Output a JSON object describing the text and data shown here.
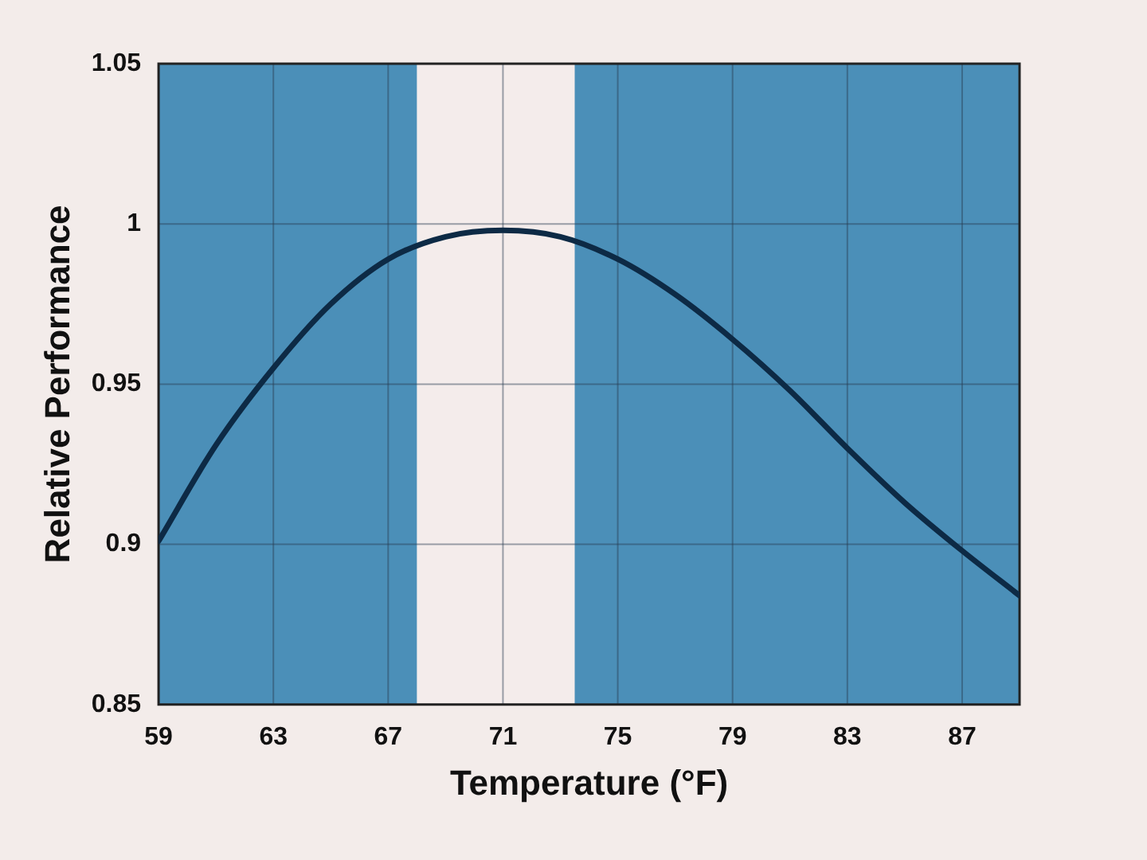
{
  "chart_data": {
    "type": "line",
    "xlabel": "Temperature (°F)",
    "ylabel": "Relative Performance",
    "x": [
      59,
      61,
      63,
      65,
      67,
      69,
      71,
      73,
      75,
      77,
      79,
      81,
      83,
      85,
      87,
      89
    ],
    "series": [
      {
        "color": "#0d2a45",
        "values": [
          0.901,
          0.931,
          0.955,
          0.975,
          0.989,
          0.996,
          0.998,
          0.996,
          0.989,
          0.978,
          0.964,
          0.948,
          0.93,
          0.913,
          0.898,
          0.884
        ]
      }
    ],
    "xlim": [
      59,
      89
    ],
    "xticks": [
      59,
      63,
      67,
      71,
      75,
      79,
      83,
      87
    ],
    "ylim": [
      0.85,
      1.05
    ],
    "yticks": [
      0.85,
      0.9,
      0.95,
      {
        "value": 1,
        "label": "1"
      },
      1.05
    ],
    "bands": [
      {
        "axis": "x",
        "from": 59,
        "to": 68,
        "color": "#4b8fb8"
      },
      {
        "axis": "x",
        "from": 73.5,
        "to": 89,
        "color": "#4b8fb8"
      }
    ],
    "grid": true,
    "marker": "none",
    "line_style": "solid",
    "legend": false
  }
}
